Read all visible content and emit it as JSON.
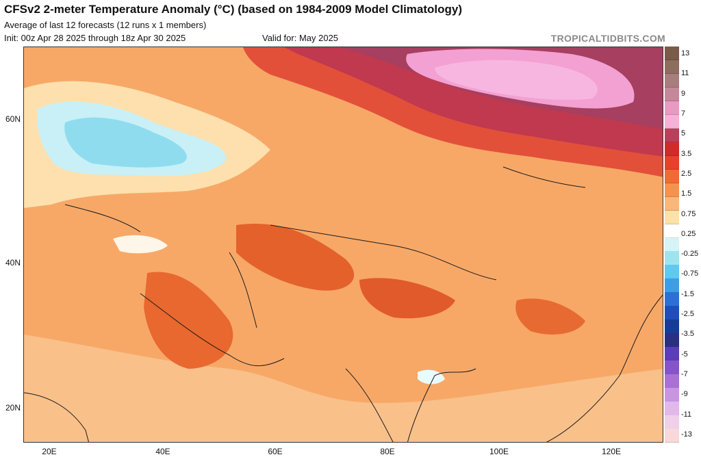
{
  "header": {
    "title": "CFSv2 2-meter Temperature Anomaly (°C) (based on 1984-2009 Model Climatology)",
    "subtitle": "Average of last 12 forecasts (12 runs x 1 members)",
    "init": "Init: 00z Apr 28 2025 through 18z Apr 30 2025",
    "valid": "Valid for: May 2025",
    "brand": "TROPICALTIDBITS.COM"
  },
  "axes": {
    "lat_labels": [
      "60N",
      "40N",
      "20N"
    ],
    "lon_labels": [
      "20E",
      "40E",
      "60E",
      "80E",
      "100E",
      "120E"
    ]
  },
  "colorbar": {
    "labels": [
      "13",
      "11",
      "9",
      "7",
      "5",
      "3.5",
      "2.5",
      "1.5",
      "0.75",
      "0.25",
      "-0.25",
      "-0.75",
      "-1.5",
      "-2.5",
      "-3.5",
      "-5",
      "-7",
      "-9",
      "-11",
      "-13"
    ],
    "colors": [
      "#7a5a48",
      "#8e6c5e",
      "#a77d7e",
      "#c4889a",
      "#e89ac0",
      "#f7b1d6",
      "#b8405a",
      "#cf2b2b",
      "#e8402a",
      "#f06a34",
      "#f5934e",
      "#f9b77a",
      "#fde2a8",
      "#ffffff",
      "#d6f4f7",
      "#9ee4ef",
      "#5fc9ef",
      "#3d9ee6",
      "#2c70d4",
      "#1f4fb6",
      "#163c99",
      "#2a2f82",
      "#5a3db8",
      "#8654c9",
      "#a970d6",
      "#c895e0",
      "#e2b8ea",
      "#f0cfe8",
      "#f8d8d8"
    ]
  },
  "map": {
    "ocean_color": "#f3a56a",
    "anomaly_warm_max": "#f29be0",
    "anomaly_cold_max": "#6fcbf0"
  }
}
